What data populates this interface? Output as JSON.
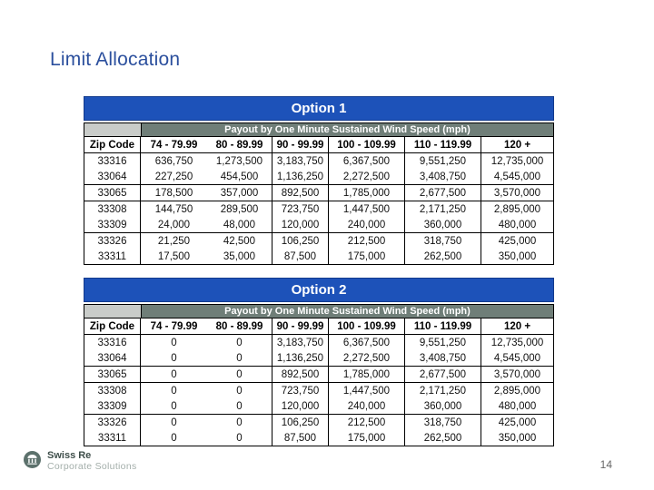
{
  "title": "Limit Allocation",
  "page_number": "14",
  "payout_header": "Payout by One Minute Sustained Wind Speed (mph)",
  "columns": [
    "Zip Code",
    "74 - 79.99",
    "80 - 89.99",
    "90 - 99.99",
    "100 - 109.99",
    "110 - 119.99",
    "120 +"
  ],
  "colors": {
    "banner_blue": "#1d52b9",
    "banner_border": "#123a8c",
    "payout_band": "#6f7e78",
    "corner_gray": "#c9ccc9",
    "title_blue": "#2b4f9d",
    "logo_circle": "#5c716c"
  },
  "tables": [
    {
      "title": "Option 1",
      "rows": [
        [
          "33316",
          "636,750",
          "1,273,500",
          "3,183,750",
          "6,367,500",
          "9,551,250",
          "12,735,000"
        ],
        [
          "33064",
          "227,250",
          "454,500",
          "1,136,250",
          "2,272,500",
          "3,408,750",
          "4,545,000"
        ],
        [
          "33065",
          "178,500",
          "357,000",
          "892,500",
          "1,785,000",
          "2,677,500",
          "3,570,000"
        ],
        [
          "33308",
          "144,750",
          "289,500",
          "723,750",
          "1,447,500",
          "2,171,250",
          "2,895,000"
        ],
        [
          "33309",
          "24,000",
          "48,000",
          "120,000",
          "240,000",
          "360,000",
          "480,000"
        ],
        [
          "33326",
          "21,250",
          "42,500",
          "106,250",
          "212,500",
          "318,750",
          "425,000"
        ],
        [
          "33311",
          "17,500",
          "35,000",
          "87,500",
          "175,000",
          "262,500",
          "350,000"
        ]
      ]
    },
    {
      "title": "Option 2",
      "rows": [
        [
          "33316",
          "0",
          "0",
          "3,183,750",
          "6,367,500",
          "9,551,250",
          "12,735,000"
        ],
        [
          "33064",
          "0",
          "0",
          "1,136,250",
          "2,272,500",
          "3,408,750",
          "4,545,000"
        ],
        [
          "33065",
          "0",
          "0",
          "892,500",
          "1,785,000",
          "2,677,500",
          "3,570,000"
        ],
        [
          "33308",
          "0",
          "0",
          "723,750",
          "1,447,500",
          "2,171,250",
          "2,895,000"
        ],
        [
          "33309",
          "0",
          "0",
          "120,000",
          "240,000",
          "360,000",
          "480,000"
        ],
        [
          "33326",
          "0",
          "0",
          "106,250",
          "212,500",
          "318,750",
          "425,000"
        ],
        [
          "33311",
          "0",
          "0",
          "87,500",
          "175,000",
          "262,500",
          "350,000"
        ]
      ]
    }
  ],
  "separator_after_rows": [
    1,
    2,
    4
  ],
  "footer": {
    "brand": "Swiss Re",
    "division": "Corporate Solutions"
  }
}
